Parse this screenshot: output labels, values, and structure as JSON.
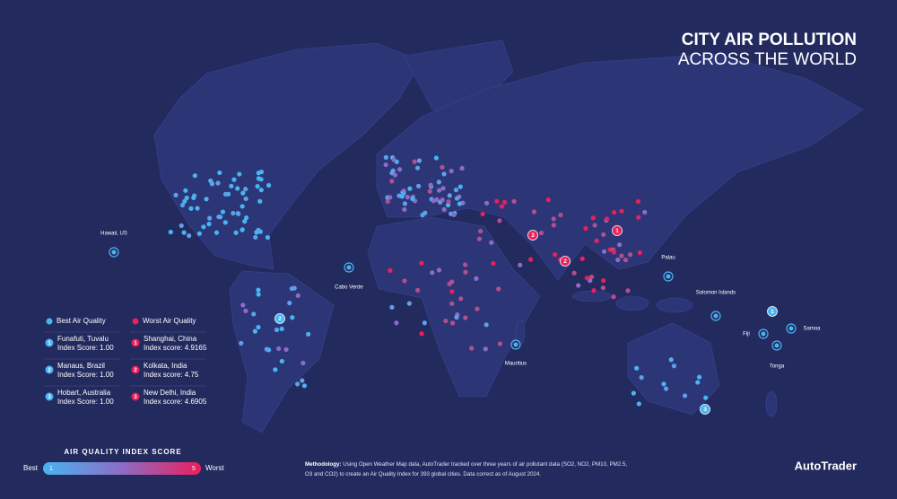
{
  "title": {
    "line1": "CITY AIR POLLUTION",
    "line2": "ACROSS THE WORLD"
  },
  "map_labels": [
    "Hawaii, US",
    "Cabo Verde",
    "Mauritius",
    "Palau",
    "Solomon Islands",
    "Fiji",
    "Samoa",
    "Tonga"
  ],
  "rankings": {
    "best_heading": "Best Air Quality",
    "worst_heading": "Worst Air Quality",
    "best": [
      {
        "rank": "1",
        "city": "Funafuti, Tuvalu",
        "score": "Index Score: 1.00"
      },
      {
        "rank": "2",
        "city": "Manaus, Brazil",
        "score": "Index Score: 1.00"
      },
      {
        "rank": "3",
        "city": "Hobart, Australia",
        "score": "Index Score: 1.00"
      }
    ],
    "worst": [
      {
        "rank": "1",
        "city": "Shanghai, China",
        "score": "Index score: 4.9165"
      },
      {
        "rank": "2",
        "city": "Kolkata, India",
        "score": "Index score: 4.75"
      },
      {
        "rank": "3",
        "city": "New Delhi, India",
        "score": "Index score: 4.6905"
      }
    ]
  },
  "legend": {
    "title": "AIR QUALITY INDEX SCORE",
    "best": "Best",
    "worst": "Worst",
    "min": "1",
    "max": "5"
  },
  "methodology": {
    "label": "Methodology:",
    "text": "Using Open Weather Map data, AutoTrader tracked over three years of air pollutant data (SO2, NO2, PM10, PM2.5, O3 and CO2) to create an Air Quality Index for 393 global cities. Data correct as of August 2024."
  },
  "brand": "AutoTrader"
}
